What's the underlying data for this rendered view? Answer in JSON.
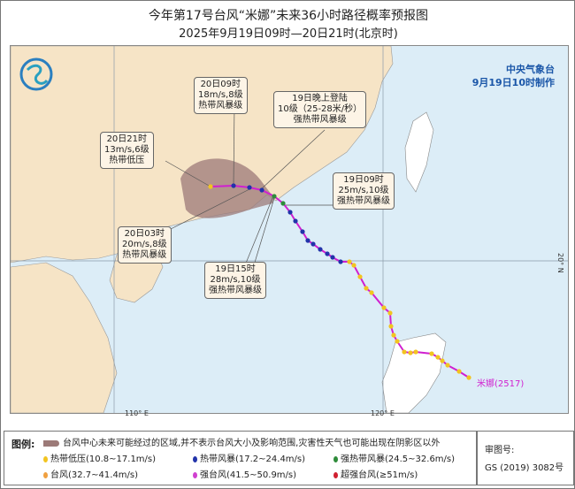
{
  "title": "今年第17号台风“米娜”未来36小时路径概率预报图",
  "subtitle": "2025年9月19日09时—20日21时(北京时)",
  "issuer": {
    "name": "中央气象台",
    "time": "9月19日10时制作"
  },
  "storm_label": "米娜(2517)",
  "grid": {
    "lon_110": "110° E",
    "lon_120": "120° E",
    "lat_20": "20° N"
  },
  "annotations": [
    {
      "time": "20日09时",
      "wind": "18m/s,8级",
      "level": "热带风暴级"
    },
    {
      "time": "19日晚上登陆",
      "wind": "10级（25-28米/秒）",
      "level": "强热带风暴级"
    },
    {
      "time": "20日21时",
      "wind": "13m/s,6级",
      "level": "热带低压"
    },
    {
      "time": "19日09时",
      "wind": "25m/s,10级",
      "level": "强热带风暴级"
    },
    {
      "time": "20日03时",
      "wind": "20m/s,8级",
      "level": "热带风暴级"
    },
    {
      "time": "19日15时",
      "wind": "28m/s,10级",
      "level": "强热带风暴级"
    }
  ],
  "legend": {
    "label": "图例:",
    "cone": "台风中心未来可能经过的区域,并不表示台风大小及影响范围,灾害性天气也可能出现在阴影区以外",
    "items": [
      {
        "label": "热带低压(10.8~17.1m/s)",
        "color": "#f2c420"
      },
      {
        "label": "热带风暴(17.2~24.4m/s)",
        "color": "#2233aa"
      },
      {
        "label": "强热带风暴(24.5~32.6m/s)",
        "color": "#2e8b3a"
      },
      {
        "label": "台风(32.7~41.4m/s)",
        "color": "#f0a040"
      },
      {
        "label": "强台风(41.5~50.9m/s)",
        "color": "#d040d0"
      },
      {
        "label": "超强台风(≥51m/s)",
        "color": "#d02030"
      }
    ]
  },
  "approval": {
    "label": "审图号:",
    "number": "GS (2019) 3082号"
  },
  "colors": {
    "ocean": "#dcedf7",
    "land": "#f6e4c6",
    "track": "#d020d0",
    "cone": "#9c7a78"
  }
}
